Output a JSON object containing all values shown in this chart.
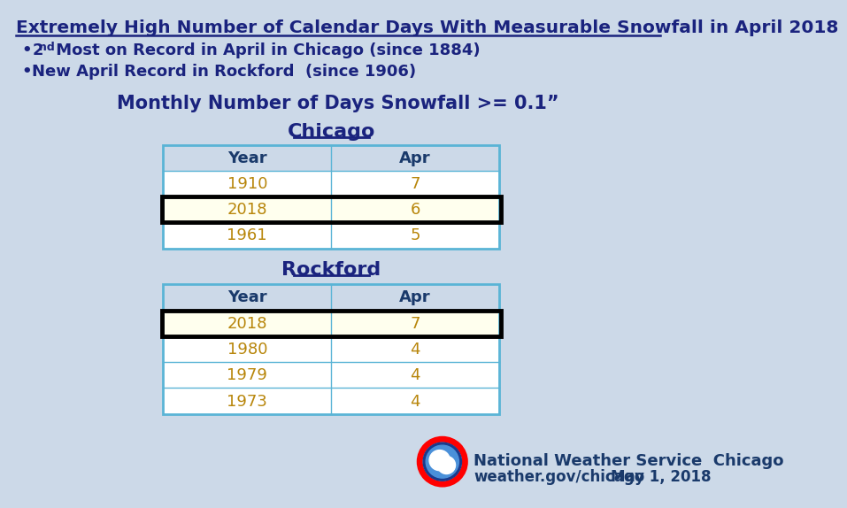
{
  "title": "Extremely High Number of Calendar Days With Measurable Snowfall in April 2018",
  "subtitle": "Monthly Number of Days Snowfall >= 0.1”",
  "bg_color": "#ccd9e8",
  "table_border_color": "#5ab4d6",
  "header_text_color": "#1a3a6b",
  "data_text_color": "#b8860b",
  "highlight_row_color": "#ffffee",
  "highlight_border_color": "#000000",
  "chicago_title": "Chicago",
  "chicago_data": [
    [
      "Year",
      "Apr"
    ],
    [
      "1910",
      "7"
    ],
    [
      "2018",
      "6"
    ],
    [
      "1961",
      "5"
    ]
  ],
  "chicago_highlight_row": 2,
  "rockford_title": "Rockford",
  "rockford_data": [
    [
      "Year",
      "Apr"
    ],
    [
      "2018",
      "7"
    ],
    [
      "1980",
      "4"
    ],
    [
      "1979",
      "4"
    ],
    [
      "1973",
      "4"
    ]
  ],
  "rockford_highlight_row": 1,
  "nws_text1": "National Weather Service  Chicago",
  "nws_text2": "weather.gov/chicago",
  "nws_date": "May 1, 2018",
  "title_color": "#1a237e",
  "subtitle_color": "#1a237e",
  "city_color": "#1a237e"
}
